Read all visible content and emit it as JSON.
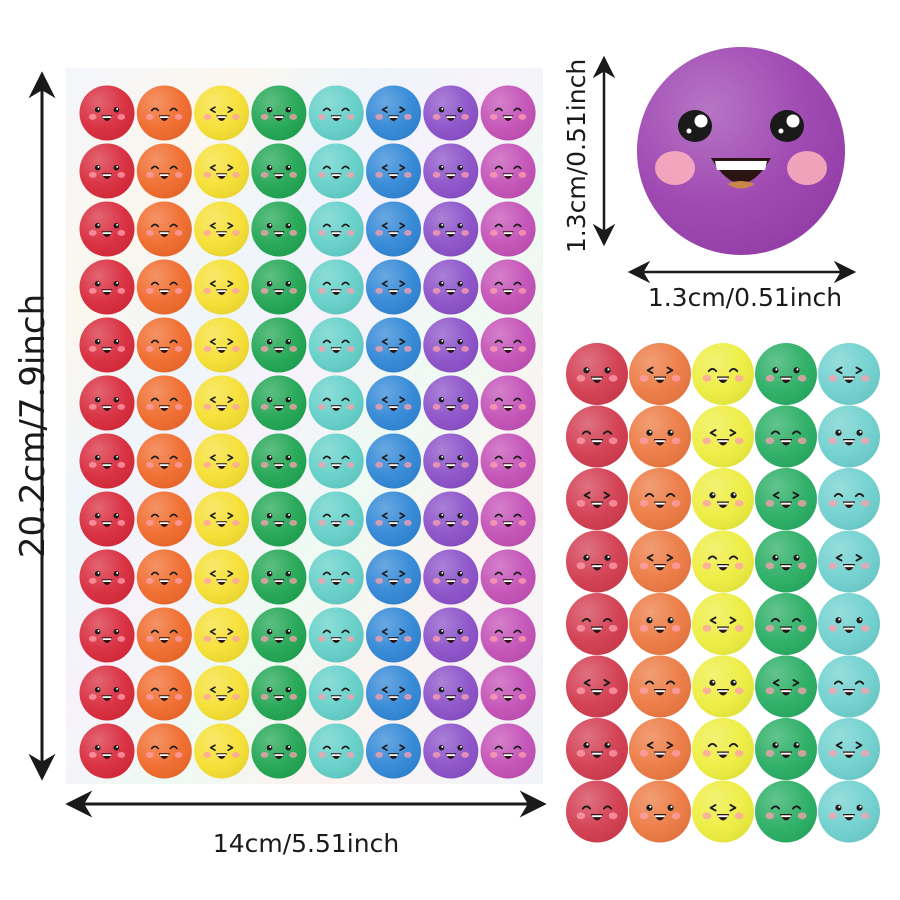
{
  "dimensions": {
    "sheet_height": "20.2cm/7.9inch",
    "sheet_width": "14cm/5.51inch",
    "sticker_height": "1.3cm/0.51inch",
    "sticker_width": "1.3cm/0.51inch"
  },
  "sticker_sheet": {
    "rows": 12,
    "columns": 8,
    "column_colors": [
      "#d8283a",
      "#f0692a",
      "#f5df30",
      "#1fa552",
      "#62cfc8",
      "#2f86d6",
      "#8a4fc8",
      "#c34fb6"
    ]
  },
  "sticker_closeup": {
    "color": "#9a3fae",
    "expression": "smiling-face"
  },
  "sticker_strip": {
    "rows": 8,
    "columns": 5,
    "column_colors": [
      "#d23a4e",
      "#ec7840",
      "#eded3e",
      "#27ad62",
      "#6ed0ce"
    ]
  }
}
